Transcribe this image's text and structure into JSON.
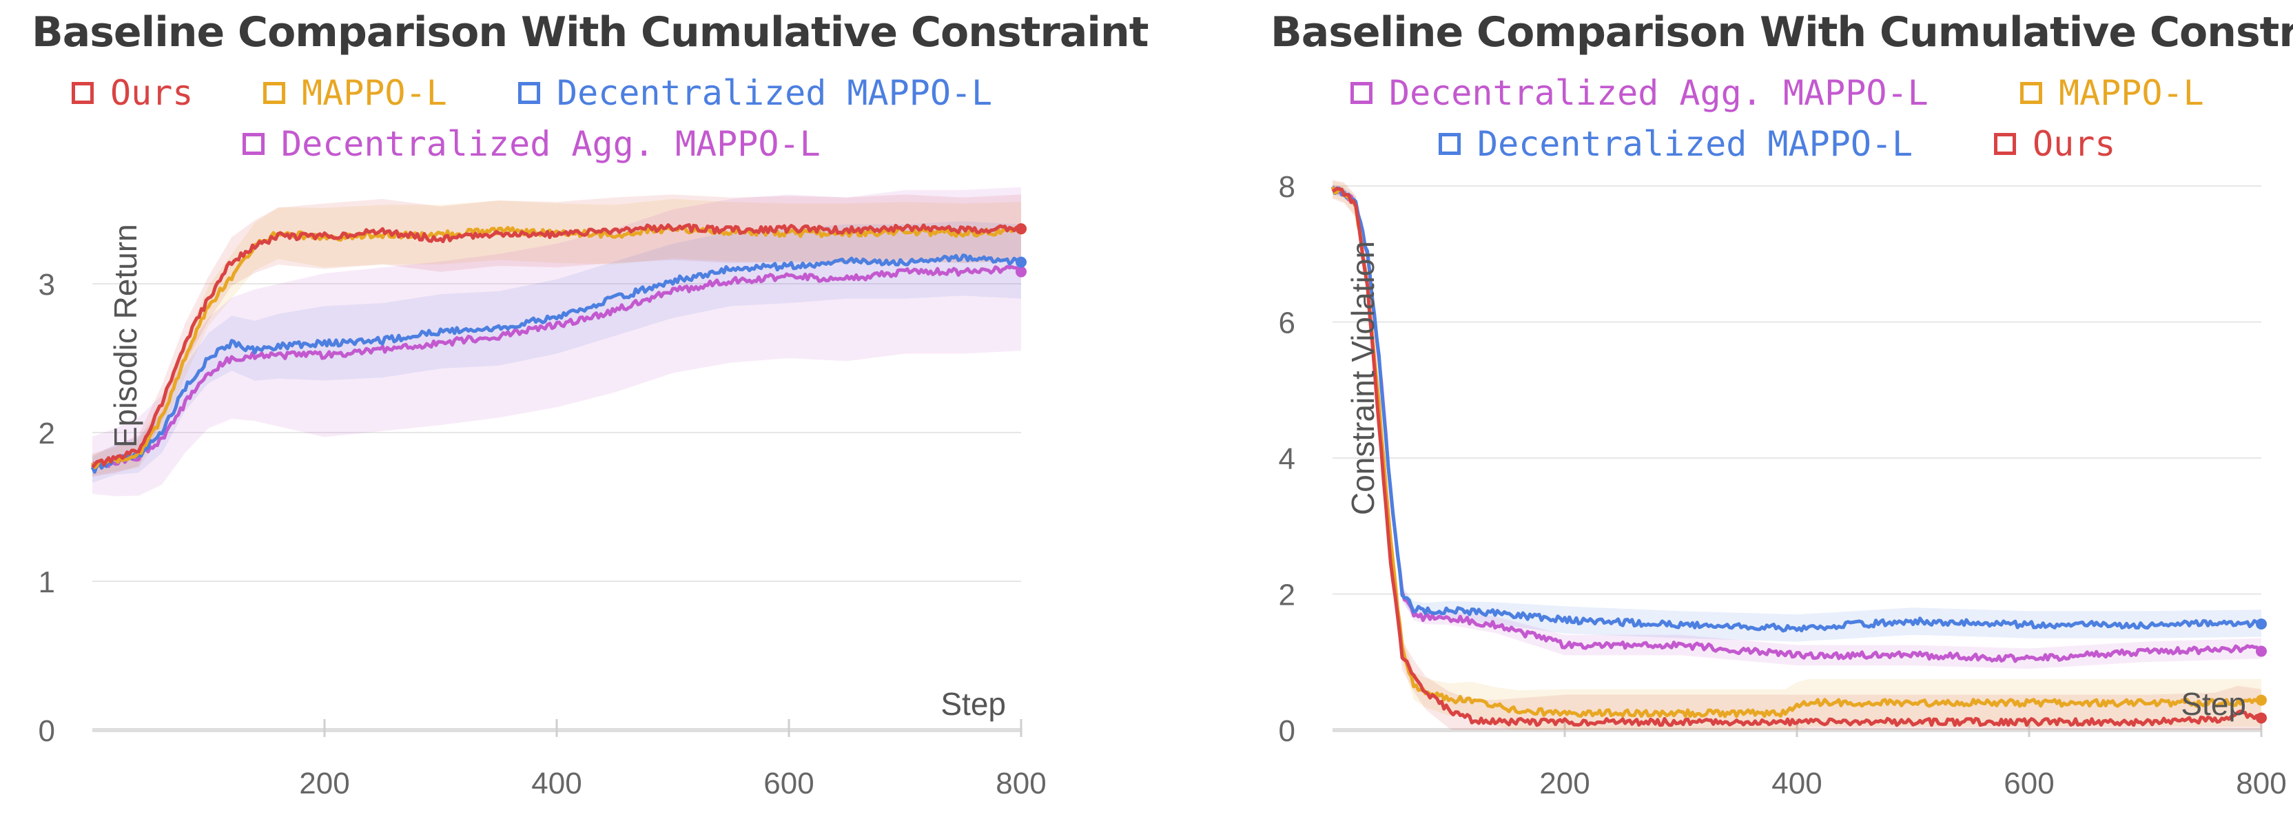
{
  "chart_data": [
    {
      "type": "line",
      "title": "Baseline Comparison With Cumulative Constraint",
      "xlabel": "Step",
      "ylabel": "Episodic Return",
      "xlim": [
        0,
        800
      ],
      "ylim": [
        0,
        3.75
      ],
      "xticks": [
        200,
        400,
        600,
        800
      ],
      "yticks": [
        0,
        1,
        2,
        3
      ],
      "grid": true,
      "legend": "top-center",
      "series": [
        {
          "name": "Ours",
          "color": "#d94343",
          "shade": 0.22,
          "x": [
            0,
            20,
            40,
            60,
            80,
            100,
            120,
            140,
            160,
            200,
            250,
            300,
            350,
            400,
            450,
            500,
            550,
            600,
            650,
            700,
            750,
            800
          ],
          "y": [
            1.78,
            1.82,
            1.88,
            2.2,
            2.6,
            2.9,
            3.15,
            3.25,
            3.32,
            3.32,
            3.35,
            3.3,
            3.34,
            3.33,
            3.36,
            3.38,
            3.36,
            3.37,
            3.36,
            3.38,
            3.36,
            3.38
          ]
        },
        {
          "name": "MAPPO-L",
          "color": "#e8a723",
          "shade": 0.2,
          "x": [
            0,
            20,
            40,
            60,
            80,
            100,
            120,
            140,
            160,
            200,
            250,
            300,
            350,
            400,
            450,
            500,
            550,
            600,
            650,
            700,
            750,
            800
          ],
          "y": [
            1.78,
            1.82,
            1.86,
            2.1,
            2.5,
            2.85,
            3.05,
            3.25,
            3.34,
            3.31,
            3.33,
            3.33,
            3.36,
            3.34,
            3.33,
            3.37,
            3.35,
            3.34,
            3.34,
            3.35,
            3.34,
            3.35
          ]
        },
        {
          "name": "Decentralized MAPPO-L",
          "color": "#4c7fe0",
          "shade": 0.25,
          "x": [
            0,
            20,
            40,
            60,
            80,
            100,
            120,
            140,
            160,
            200,
            250,
            300,
            350,
            400,
            450,
            500,
            550,
            600,
            650,
            700,
            750,
            800
          ],
          "y": [
            1.75,
            1.82,
            1.85,
            2.0,
            2.3,
            2.5,
            2.6,
            2.55,
            2.58,
            2.6,
            2.62,
            2.68,
            2.7,
            2.78,
            2.9,
            3.02,
            3.1,
            3.12,
            3.15,
            3.15,
            3.17,
            3.15
          ]
        },
        {
          "name": "Decentralized Agg. MAPPO-L",
          "color": "#c359cf",
          "shade": 0.55,
          "x": [
            0,
            20,
            40,
            60,
            80,
            100,
            120,
            140,
            160,
            200,
            250,
            300,
            350,
            400,
            450,
            500,
            550,
            600,
            650,
            700,
            750,
            800
          ],
          "y": [
            1.78,
            1.8,
            1.84,
            1.95,
            2.2,
            2.4,
            2.5,
            2.52,
            2.52,
            2.52,
            2.56,
            2.6,
            2.65,
            2.72,
            2.82,
            2.95,
            3.02,
            3.05,
            3.03,
            3.08,
            3.08,
            3.1
          ]
        }
      ],
      "legend_order": [
        0,
        1,
        2,
        3
      ]
    },
    {
      "type": "line",
      "title": "Baseline Comparison With Cumulative Constraint",
      "xlabel": "Step",
      "ylabel": "Constraint Violation",
      "xlim": [
        0,
        800
      ],
      "ylim": [
        0,
        8
      ],
      "xticks": [
        200,
        400,
        600,
        800
      ],
      "yticks": [
        0,
        2,
        4,
        6,
        8
      ],
      "grid": true,
      "legend": "top-center",
      "series": [
        {
          "name": "Ours",
          "color": "#d94343",
          "shade": 0.4,
          "x": [
            0,
            10,
            20,
            30,
            40,
            50,
            60,
            70,
            80,
            100,
            120,
            140,
            160,
            200,
            300,
            400,
            500,
            600,
            700,
            760,
            780,
            800
          ],
          "y": [
            7.95,
            7.9,
            7.7,
            6.5,
            4.5,
            2.5,
            1.1,
            0.8,
            0.55,
            0.3,
            0.15,
            0.12,
            0.12,
            0.12,
            0.12,
            0.12,
            0.12,
            0.12,
            0.12,
            0.15,
            0.25,
            0.2
          ]
        },
        {
          "name": "MAPPO-L",
          "color": "#e8a723",
          "shade": 0.35,
          "x": [
            0,
            10,
            20,
            30,
            40,
            50,
            60,
            70,
            80,
            100,
            120,
            140,
            160,
            200,
            300,
            390,
            400,
            410,
            500,
            600,
            700,
            800
          ],
          "y": [
            7.95,
            7.9,
            7.7,
            6.6,
            4.8,
            2.8,
            1.2,
            0.65,
            0.55,
            0.45,
            0.45,
            0.35,
            0.28,
            0.25,
            0.25,
            0.25,
            0.35,
            0.4,
            0.4,
            0.4,
            0.4,
            0.4
          ]
        },
        {
          "name": "Decentralized MAPPO-L",
          "color": "#4c7fe0",
          "shade": 0.2,
          "x": [
            0,
            10,
            20,
            30,
            40,
            50,
            60,
            70,
            80,
            100,
            140,
            200,
            300,
            400,
            500,
            600,
            700,
            800
          ],
          "y": [
            7.95,
            7.9,
            7.75,
            7.0,
            5.5,
            3.5,
            2.0,
            1.78,
            1.75,
            1.76,
            1.72,
            1.62,
            1.55,
            1.5,
            1.6,
            1.55,
            1.55,
            1.57
          ]
        },
        {
          "name": "Decentralized Agg. MAPPO-L",
          "color": "#c359cf",
          "shade": 0.15,
          "x": [
            0,
            10,
            20,
            30,
            40,
            50,
            60,
            70,
            80,
            100,
            140,
            200,
            250,
            300,
            400,
            450,
            500,
            600,
            700,
            800
          ],
          "y": [
            7.95,
            7.9,
            7.75,
            7.0,
            5.5,
            3.5,
            2.0,
            1.7,
            1.65,
            1.65,
            1.55,
            1.25,
            1.25,
            1.25,
            1.1,
            1.1,
            1.1,
            1.05,
            1.15,
            1.2
          ]
        }
      ],
      "legend_order": [
        3,
        1,
        2,
        0
      ]
    }
  ]
}
